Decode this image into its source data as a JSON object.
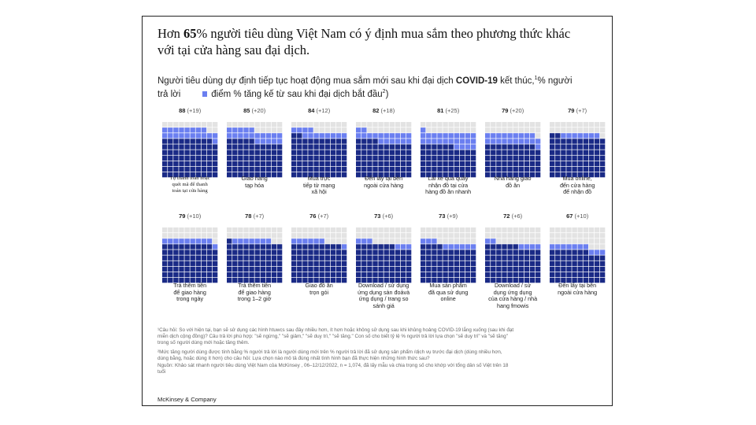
{
  "title_parts": [
    "Hơn ",
    "65",
    "% người tiêu dùng Việt Nam có ý định mua sắm theo phương thức khác",
    "với tại cửa hàng sau đại dịch."
  ],
  "subtitle": {
    "before": "Người tiêu dùng dự định tiếp tục hoạt động mua sắm mới sau khi đại dịch ",
    "bold": "COVID-19",
    "after": " kết thúc,",
    "sup1": "1",
    "unit": "% người",
    "line2_start": "trả lời",
    "legend": "điểm % tăng kế từ sau khi đại dịch bắt đầu",
    "sup2": "2",
    "legend_end": ")"
  },
  "colors": {
    "base": "#1a2a86",
    "increase": "#6b7ff0",
    "empty": "#e3e3e3"
  },
  "chart_data": {
    "type": "waffle",
    "title": "Hơn 65% người tiêu dùng Việt Nam có ý định mua sắm theo phương thức khác với tại cửa hàng sau đại dịch.",
    "unit": "% người trả lời",
    "series": [
      {
        "name": "điểm % tăng kế từ sau khi đại dịch bắt đầu"
      }
    ],
    "categories": [
      "Tự thanh toán hoặc quét mã để thanh toán tại cửa hàng",
      "Giao hàng tạp hóa",
      "Mua trực tiếp từ mạng xã hội",
      "Đến lấy tại bên ngoài cửa hàng",
      "Lái xe qua quầy nhận đồ tại cửa hàng đồ ăn nhanh",
      "Nhà hàng giao đồ ăn",
      "Mua online, đến cửa hàng để nhận đồ",
      "Trả thêm tiền để giao hàng trong ngày",
      "Trả thêm tiền để giao hàng trong 1–2 giờ",
      "Giao đồ ăn trọn gói",
      "Download / sử dụng ứng dụng sàn đoảvà ứng dụng / trang so sánh giá",
      "Mua sản phẩm đã qua sử dụng online",
      "Download / sử dụng ứng dụng của cửa hàng / nhà hang fmowis",
      "Đến lấy tại bên ngoài cửa hàng"
    ],
    "values": [
      88,
      85,
      84,
      82,
      81,
      79,
      79,
      79,
      78,
      76,
      73,
      73,
      72,
      67
    ],
    "increase": [
      19,
      20,
      12,
      18,
      25,
      20,
      7,
      10,
      7,
      7,
      6,
      9,
      6,
      10
    ],
    "value_labels": [
      "88",
      "85",
      "84",
      "82",
      "81",
      "79",
      "79",
      "79",
      "78",
      "76",
      "73",
      "73",
      "72",
      "67"
    ],
    "increase_labels": [
      "(+19)",
      "(+20)",
      "(+12)",
      "(+18)",
      "(+25)",
      "(+20)",
      "(+7)",
      "(+10)",
      "(+7)",
      "(+7)",
      "(+6)",
      "(+9)",
      "(+6)",
      "(+10)"
    ],
    "cat_lines": [
      [
        "Tự thanh toán hoặc",
        "quét mã để thanh",
        "toán tại cửa hàng"
      ],
      [
        "Giao hàng",
        "tạp hóa"
      ],
      [
        "Mua trực",
        "tiếp từ mạng",
        "xã hội"
      ],
      [
        "Đến lấy tại bên",
        "ngoài cửa hàng"
      ],
      [
        "Lái xe qua quầy",
        "nhận đồ tại cửa",
        "hàng đồ ăn nhanh"
      ],
      [
        "Nhà hàng giao",
        "đồ ăn"
      ],
      [
        "Mua online,",
        "đến cửa hàng",
        "để nhận đồ"
      ],
      [
        "Trả thêm tiền",
        "để giao hàng",
        "trong ngày"
      ],
      [
        "Trả thêm tiền",
        "để giao hàng",
        "trong 1–2 giờ"
      ],
      [
        "Giao đồ ăn",
        "trọn gói"
      ],
      [
        "Download / sử dụng",
        "ứng dụng sàn đoảvà",
        "ứng dụng / trang so",
        "sánh giá"
      ],
      [
        "Mua sản phẩm",
        "đã qua sử dụng",
        "online"
      ],
      [
        "Download / sử",
        "dụng ứng dụng",
        "của cửa hàng / nhà",
        "hang fmowis"
      ],
      [
        "Đến lấy tại bên",
        "ngoài cửa hàng"
      ]
    ],
    "grid": "10x10",
    "legend": "top"
  },
  "footnotes": [
    "¹Câu hỏi: So với hiện tại, bạn sẽ sử dụng các hình htuwcs sau đây nhiều hơn, ít hơn hoặc không sử dụng sau khi khủng hoảng COVID-19 lắng xuống (sau khi đạt",
    "miễn dịch cộng đồng)? Câu trả lời phù hợp: \"sẽ ngừng,\" \"sẽ giảm,\" \"sẽ duy trì,\" \"sẽ tăng.\" Con số cho biết tỷ lệ % người trả lời lựa chọn \"sẽ duy trì\" và \"sẽ tăng\"",
    "trong số người dùng mới hoặc tăng thêm.",
    "²Mức tăng người dùng được tính bằng % người trả lời là người dùng mới trên % người trả lời đã sử dụng sản phẩm /dịch vụ trước đại dịch (dùng nhiều hơn,",
    "dùng bằng, hoặc dùng ít hơn) cho câu hỏi: Lựa chọn nào mô tả đúng nhất tình hình bạn đã thực hiện những hình thức sau?",
    "Nguồn: Khảo sát nhanh người tiêu dùng Việt Nam của McKinsey , 06–12/12/2022, n = 1,074, đã lấy mẫu và chia trọng số cho khớp với tổng dân số Việt trên 18",
    "tuổi"
  ],
  "brand": "McKinsey & Company"
}
